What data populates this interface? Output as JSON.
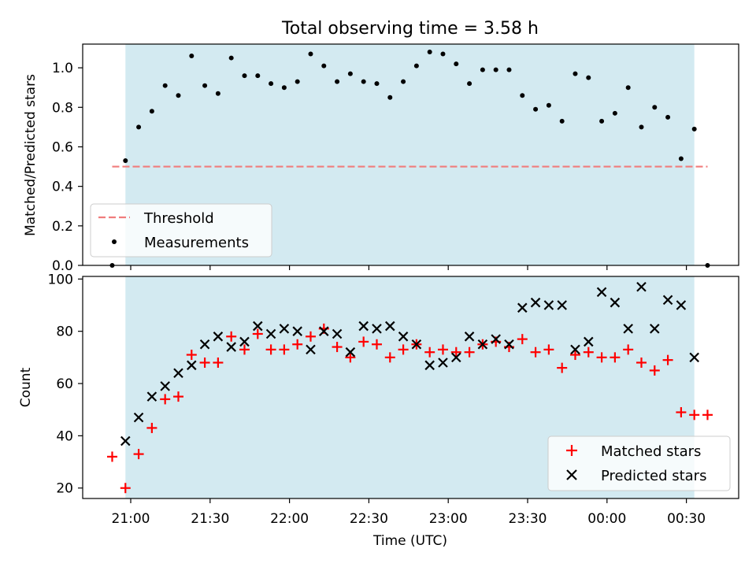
{
  "chart_data": {
    "type": "scatter",
    "title": "Total observing time = 3.58 h",
    "xlabel": "Time (UTC)",
    "x_ticks": [
      "21:00",
      "21:30",
      "22:00",
      "22:30",
      "23:00",
      "23:30",
      "00:00",
      "00:30"
    ],
    "shaded_window": [
      "20:58",
      "00:33"
    ],
    "shade_color": "#d3eaf1",
    "top_panel": {
      "ylabel": "Matched/Predicted stars",
      "ylim": [
        0,
        1.12
      ],
      "y_ticks": [
        "0.0",
        "0.2",
        "0.4",
        "0.6",
        "0.8",
        "1.0"
      ],
      "threshold": {
        "name": "Threshold",
        "value": 0.5,
        "x_range": [
          "20:53",
          "00:38"
        ],
        "color": "#f07c7c"
      },
      "measurements": {
        "name": "Measurements",
        "color": "#000000",
        "x": [
          "20:53",
          "20:58",
          "21:03",
          "21:08",
          "21:13",
          "21:18",
          "21:23",
          "21:28",
          "21:33",
          "21:38",
          "21:43",
          "21:48",
          "21:53",
          "21:58",
          "22:03",
          "22:08",
          "22:13",
          "22:18",
          "22:23",
          "22:28",
          "22:33",
          "22:38",
          "22:43",
          "22:48",
          "22:53",
          "22:58",
          "23:03",
          "23:08",
          "23:13",
          "23:18",
          "23:23",
          "23:28",
          "23:33",
          "23:38",
          "23:43",
          "23:48",
          "23:53",
          "23:58",
          "00:03",
          "00:08",
          "00:13",
          "00:18",
          "00:23",
          "00:28",
          "00:33",
          "00:38"
        ],
        "y": [
          0.0,
          0.53,
          0.7,
          0.78,
          0.91,
          0.86,
          1.06,
          0.91,
          0.87,
          1.05,
          0.96,
          0.96,
          0.92,
          0.9,
          0.93,
          1.07,
          1.01,
          0.93,
          0.97,
          0.93,
          0.92,
          0.85,
          0.93,
          1.01,
          1.08,
          1.07,
          1.02,
          0.92,
          0.99,
          0.99,
          0.99,
          0.86,
          0.79,
          0.81,
          0.73,
          0.97,
          0.95,
          0.73,
          0.77,
          0.9,
          0.7,
          0.8,
          0.75,
          0.54,
          0.69,
          0.0
        ]
      }
    },
    "bottom_panel": {
      "ylabel": "Count",
      "ylim": [
        16,
        101
      ],
      "y_ticks": [
        "20",
        "40",
        "60",
        "80",
        "100"
      ],
      "series": [
        {
          "name": "Matched stars",
          "marker": "+",
          "color": "#ff0000",
          "x": [
            "20:53",
            "20:58",
            "21:03",
            "21:08",
            "21:13",
            "21:18",
            "21:23",
            "21:28",
            "21:33",
            "21:38",
            "21:43",
            "21:48",
            "21:53",
            "21:58",
            "22:03",
            "22:08",
            "22:13",
            "22:18",
            "22:23",
            "22:28",
            "22:33",
            "22:38",
            "22:43",
            "22:48",
            "22:53",
            "22:58",
            "23:03",
            "23:08",
            "23:13",
            "23:18",
            "23:23",
            "23:28",
            "23:33",
            "23:38",
            "23:43",
            "23:48",
            "23:53",
            "23:58",
            "00:03",
            "00:08",
            "00:13",
            "00:18",
            "00:23",
            "00:28",
            "00:33",
            "00:38"
          ],
          "y": [
            32,
            20,
            33,
            43,
            54,
            55,
            71,
            68,
            68,
            78,
            73,
            79,
            73,
            73,
            75,
            78,
            81,
            74,
            70,
            76,
            75,
            70,
            73,
            75,
            72,
            73,
            72,
            72,
            75,
            76,
            74,
            77,
            72,
            73,
            66,
            71,
            72,
            70,
            70,
            73,
            68,
            65,
            69,
            49,
            48,
            48
          ]
        },
        {
          "name": "Predicted stars",
          "marker": "x",
          "color": "#000000",
          "x": [
            "20:58",
            "21:03",
            "21:08",
            "21:13",
            "21:18",
            "21:23",
            "21:28",
            "21:33",
            "21:38",
            "21:43",
            "21:48",
            "21:53",
            "21:58",
            "22:03",
            "22:08",
            "22:13",
            "22:18",
            "22:23",
            "22:28",
            "22:33",
            "22:38",
            "22:43",
            "22:48",
            "22:53",
            "22:58",
            "23:03",
            "23:08",
            "23:13",
            "23:18",
            "23:23",
            "23:28",
            "23:33",
            "23:38",
            "23:43",
            "23:48",
            "23:53",
            "23:58",
            "00:03",
            "00:08",
            "00:13",
            "00:18",
            "00:23",
            "00:28",
            "00:33"
          ],
          "y": [
            38,
            47,
            55,
            59,
            64,
            67,
            75,
            78,
            74,
            76,
            82,
            79,
            81,
            80,
            73,
            80,
            79,
            72,
            82,
            81,
            82,
            78,
            75,
            67,
            68,
            70,
            78,
            75,
            77,
            75,
            89,
            91,
            90,
            90,
            73,
            76,
            95,
            91,
            81,
            97,
            81,
            92,
            90,
            70
          ]
        }
      ]
    }
  }
}
